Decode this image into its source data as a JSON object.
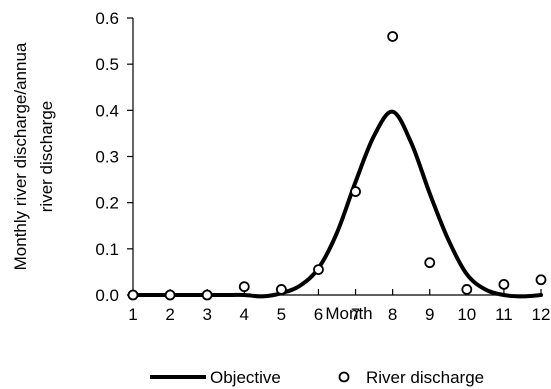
{
  "chart_data": {
    "type": "line",
    "title": "",
    "xlabel": "Month",
    "ylabel_lines": [
      "Monthly river discharge/annua",
      "river discharge"
    ],
    "x_ticks": [
      "1",
      "2",
      "3",
      "4",
      "5",
      "6",
      "7",
      "8",
      "9",
      "10",
      "11",
      "12"
    ],
    "y_ticks": [
      "0.0",
      "0.1",
      "0.2",
      "0.3",
      "0.4",
      "0.5",
      "0.6"
    ],
    "xlim": [
      1,
      12
    ],
    "ylim": [
      0,
      0.6
    ],
    "grid": false,
    "legend_position": "bottom",
    "series": [
      {
        "name": "Objective",
        "style": "smooth-line",
        "color": "#000000",
        "x": [
          1,
          1.5,
          2,
          2.5,
          3,
          3.5,
          4,
          4.5,
          5,
          5.5,
          6,
          6.5,
          7,
          7.5,
          8,
          8.5,
          9,
          9.5,
          10,
          10.5,
          11,
          11.5,
          12
        ],
        "y": [
          0.0,
          0.0,
          0.0,
          0.0,
          0.0,
          0.0,
          0.0,
          -0.003,
          0.004,
          0.02,
          0.058,
          0.135,
          0.245,
          0.345,
          0.397,
          0.33,
          0.22,
          0.12,
          0.045,
          0.012,
          0.0,
          -0.003,
          0.0
        ]
      },
      {
        "name": "River discharge",
        "style": "open-circle",
        "color": "#000000",
        "x": [
          1,
          2,
          3,
          4,
          5,
          6,
          7,
          8,
          9,
          10,
          11,
          12
        ],
        "y": [
          0.0,
          0.0,
          0.0,
          0.018,
          0.012,
          0.055,
          0.224,
          0.56,
          0.07,
          0.012,
          0.023,
          0.033
        ]
      }
    ]
  }
}
